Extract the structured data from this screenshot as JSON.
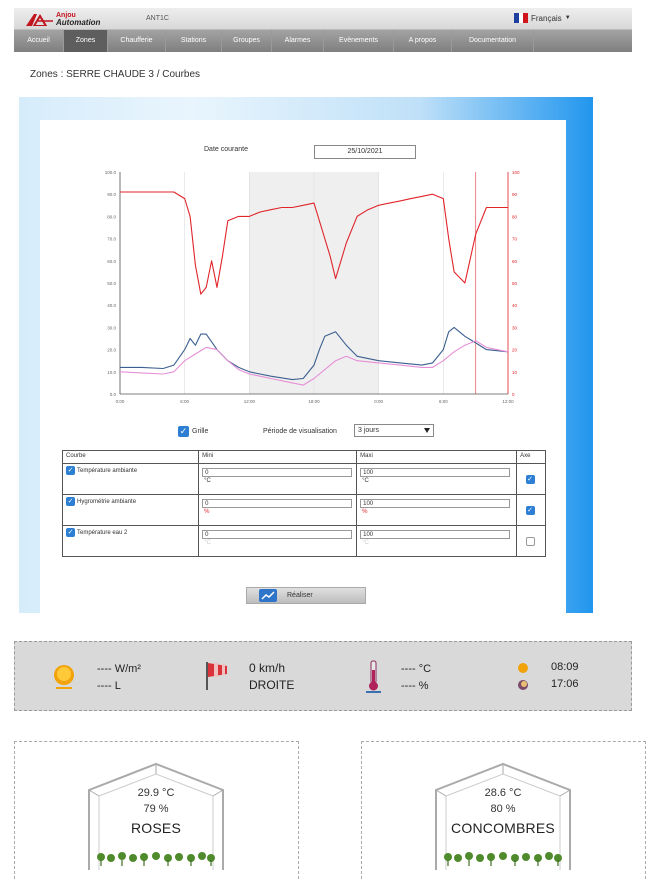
{
  "header": {
    "brand_line1": "Anjou",
    "brand_line2": "Automation",
    "site_name": "ANT1C",
    "language": "Français",
    "language_flag_colors": [
      "#1f3fa0",
      "#ffffff",
      "#d0161c"
    ]
  },
  "nav": {
    "items": [
      {
        "label": "Accueil"
      },
      {
        "label": "Zones",
        "active": true
      },
      {
        "label": "Chaufferie"
      },
      {
        "label": "Stations"
      },
      {
        "label": "Groupes"
      },
      {
        "label": "Alarmes"
      },
      {
        "label": "Evènements"
      },
      {
        "label": "A propos"
      },
      {
        "label": "Documentation"
      }
    ]
  },
  "breadcrumb": "Zones : SERRE CHAUDE 3 / Courbes",
  "date": {
    "label": "Date courante",
    "value": "25/10/2021"
  },
  "chart_data": {
    "type": "line",
    "left_axis_ticks": [
      "100.0",
      "90.0",
      "80.0",
      "70.0",
      "60.0",
      "50.0",
      "40.0",
      "30.0",
      "20.0",
      "10.0",
      "0.0"
    ],
    "right_axis_ticks": [
      "100",
      "90",
      "80",
      "70",
      "60",
      "50",
      "40",
      "30",
      "20",
      "10",
      "0"
    ],
    "x_ticks": [
      "0:00",
      "6:00",
      "12:00",
      "18:00",
      "0:00",
      "6:00",
      "12:00"
    ],
    "ylim": [
      0,
      100
    ],
    "night_band_x": [
      12,
      24
    ],
    "cursor_x": 33,
    "colors": {
      "red": "#e0242a",
      "blue": "#3b5f8f",
      "pink": "#e68fd6"
    },
    "series": [
      {
        "color": "red",
        "x": [
          0,
          1,
          2,
          3,
          4,
          5,
          6,
          6.5,
          7,
          7.5,
          8,
          8.5,
          9,
          9.5,
          10,
          11,
          12,
          13,
          14,
          15,
          16,
          17,
          18,
          19,
          19.5,
          20,
          21,
          22,
          23,
          24,
          25,
          26,
          27,
          28,
          29,
          30,
          30.5,
          31,
          32,
          33,
          34,
          35,
          36
        ],
        "y": [
          91,
          91,
          91,
          91,
          91,
          91,
          88,
          80,
          58,
          45,
          48,
          60,
          48,
          62,
          78,
          80,
          80,
          82,
          83,
          84,
          84,
          85,
          86,
          70,
          62,
          52,
          68,
          80,
          83,
          85,
          86,
          87,
          88,
          89,
          90,
          88,
          70,
          55,
          50,
          72,
          84,
          84,
          84
        ]
      },
      {
        "color": "blue",
        "x": [
          0,
          2,
          4,
          5,
          6,
          6.5,
          7,
          7.5,
          8,
          9,
          10,
          11,
          12,
          13,
          14,
          16,
          17,
          18,
          18.5,
          19,
          20,
          21,
          22,
          24,
          26,
          28,
          29,
          30,
          30.5,
          31,
          32,
          33,
          34,
          36
        ],
        "y": [
          12,
          12,
          11.5,
          13,
          20,
          25,
          22,
          27,
          27,
          20,
          15,
          12,
          10,
          9,
          8,
          6.5,
          7,
          13,
          20,
          26,
          28,
          22,
          17,
          15,
          14,
          13,
          14,
          20,
          28,
          30,
          26,
          23,
          20,
          19
        ]
      },
      {
        "color": "pink",
        "x": [
          0,
          2,
          4,
          5,
          6,
          7,
          8,
          9,
          10,
          11,
          12,
          13,
          14,
          16,
          17,
          18,
          19,
          20,
          21,
          22,
          24,
          26,
          28,
          29,
          30,
          31,
          32,
          33,
          34,
          36
        ],
        "y": [
          10,
          9.5,
          9,
          10,
          15,
          18,
          21,
          20,
          15,
          11,
          9,
          8,
          7,
          5,
          4,
          7,
          11,
          15,
          17,
          15,
          14,
          13,
          12,
          12,
          15,
          19,
          22,
          24,
          21,
          19
        ]
      }
    ]
  },
  "controls": {
    "grid_label": "Grille",
    "period_label": "Période de visualisation",
    "period_value": "3 jours"
  },
  "table": {
    "headers": [
      "Courbe",
      "Mini",
      "Maxi",
      "Axe"
    ],
    "rows": [
      {
        "name": "Température ambiante",
        "min": "0",
        "min_unit": "°C",
        "max": "100",
        "max_unit": "°C",
        "unit_color": "#333333",
        "axis_checked": true
      },
      {
        "name": "Hygrométrie ambiante",
        "min": "0",
        "min_unit": "%",
        "max": "100",
        "max_unit": "%",
        "unit_color": "#e0242a",
        "axis_checked": true
      },
      {
        "name": "Température eau 2",
        "min": "0",
        "min_unit": "°C",
        "max": "100",
        "max_unit": "°C",
        "unit_color": "#cccccc",
        "axis_checked": false
      }
    ]
  },
  "realize_label": "Réaliser",
  "weather": {
    "radiation": "---- W/m²",
    "rain": "---- L",
    "wind_speed": "0 km/h",
    "wind_dir": "DROITE",
    "temperature": "---- °C",
    "humidity": "---- %",
    "sunrise": "08:09",
    "sunset": "17:06"
  },
  "greenhouses": [
    {
      "temp": "29.9 °C",
      "hum": "79 %",
      "name": "ROSES"
    },
    {
      "temp": "28.6 °C",
      "hum": "80 %",
      "name": "CONCOMBRES"
    }
  ]
}
